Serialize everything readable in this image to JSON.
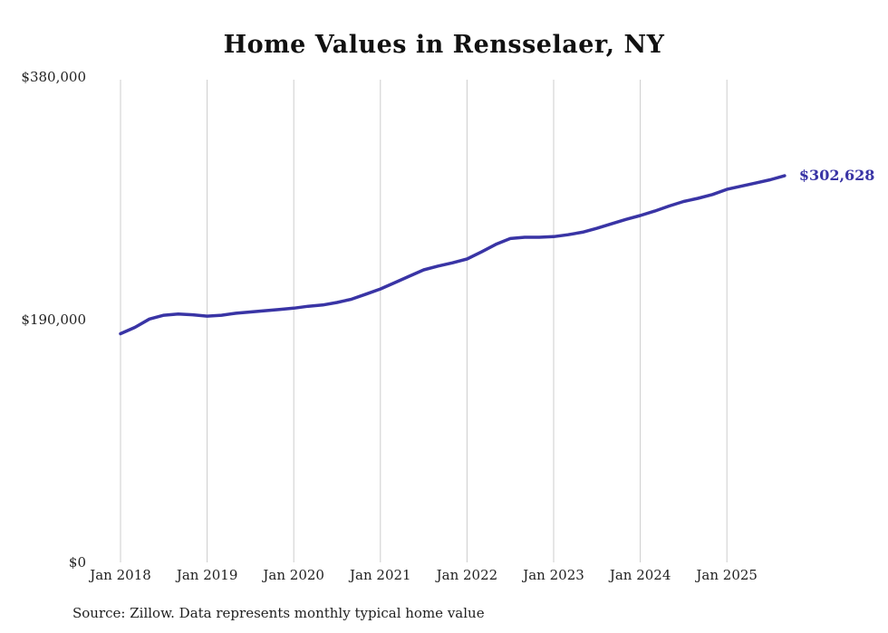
{
  "page": {
    "title": "Home Values in Rensselaer, NY",
    "source_note": "Source: Zillow. Data represents monthly typical home value"
  },
  "chart_data": {
    "type": "line",
    "title": "Home Values in Rensselaer, NY",
    "xlabel": "",
    "ylabel": "",
    "ylim": [
      0,
      380000
    ],
    "grid": "vertical-only",
    "legend": "none",
    "line_color": "#3934a5",
    "gridline_color": "#cccccc",
    "tick_color": "#1f1f1f",
    "end_label": "$302,628",
    "latest_value": 302628,
    "y_ticks": [
      {
        "label": "$0",
        "value": 0
      },
      {
        "label": "$190,000",
        "value": 190000
      },
      {
        "label": "$380,000",
        "value": 380000
      }
    ],
    "x_ticks": [
      {
        "label": "Jan 2018",
        "year": 2018
      },
      {
        "label": "Jan 2019",
        "year": 2019
      },
      {
        "label": "Jan 2020",
        "year": 2020
      },
      {
        "label": "Jan 2021",
        "year": 2021
      },
      {
        "label": "Jan 2022",
        "year": 2022
      },
      {
        "label": "Jan 2023",
        "year": 2023
      },
      {
        "label": "Jan 2024",
        "year": 2024
      },
      {
        "label": "Jan 2025",
        "year": 2025
      }
    ],
    "series": [
      {
        "name": "Monthly typical home value",
        "points": [
          {
            "date": "2018-01",
            "value": 179000
          },
          {
            "date": "2018-03",
            "value": 184000
          },
          {
            "date": "2018-05",
            "value": 190500
          },
          {
            "date": "2018-07",
            "value": 193500
          },
          {
            "date": "2018-09",
            "value": 194500
          },
          {
            "date": "2018-11",
            "value": 193800
          },
          {
            "date": "2019-01",
            "value": 192800
          },
          {
            "date": "2019-03",
            "value": 193500
          },
          {
            "date": "2019-05",
            "value": 195000
          },
          {
            "date": "2019-07",
            "value": 196000
          },
          {
            "date": "2019-09",
            "value": 197000
          },
          {
            "date": "2019-11",
            "value": 198000
          },
          {
            "date": "2020-01",
            "value": 199000
          },
          {
            "date": "2020-03",
            "value": 200500
          },
          {
            "date": "2020-05",
            "value": 201500
          },
          {
            "date": "2020-07",
            "value": 203500
          },
          {
            "date": "2020-09",
            "value": 206000
          },
          {
            "date": "2020-11",
            "value": 210000
          },
          {
            "date": "2021-01",
            "value": 214000
          },
          {
            "date": "2021-03",
            "value": 219000
          },
          {
            "date": "2021-05",
            "value": 224000
          },
          {
            "date": "2021-07",
            "value": 229000
          },
          {
            "date": "2021-09",
            "value": 232000
          },
          {
            "date": "2021-11",
            "value": 234500
          },
          {
            "date": "2022-01",
            "value": 237500
          },
          {
            "date": "2022-03",
            "value": 243000
          },
          {
            "date": "2022-05",
            "value": 249000
          },
          {
            "date": "2022-07",
            "value": 253500
          },
          {
            "date": "2022-09",
            "value": 254500
          },
          {
            "date": "2022-11",
            "value": 254500
          },
          {
            "date": "2023-01",
            "value": 255000
          },
          {
            "date": "2023-03",
            "value": 256500
          },
          {
            "date": "2023-05",
            "value": 258500
          },
          {
            "date": "2023-07",
            "value": 261500
          },
          {
            "date": "2023-09",
            "value": 265000
          },
          {
            "date": "2023-11",
            "value": 268500
          },
          {
            "date": "2024-01",
            "value": 271500
          },
          {
            "date": "2024-03",
            "value": 275000
          },
          {
            "date": "2024-05",
            "value": 279000
          },
          {
            "date": "2024-07",
            "value": 282500
          },
          {
            "date": "2024-09",
            "value": 285000
          },
          {
            "date": "2024-11",
            "value": 288000
          },
          {
            "date": "2025-01",
            "value": 292000
          },
          {
            "date": "2025-03",
            "value": 294500
          },
          {
            "date": "2025-05",
            "value": 297000
          },
          {
            "date": "2025-07",
            "value": 299500
          },
          {
            "date": "2025-09",
            "value": 302628
          }
        ]
      }
    ]
  }
}
